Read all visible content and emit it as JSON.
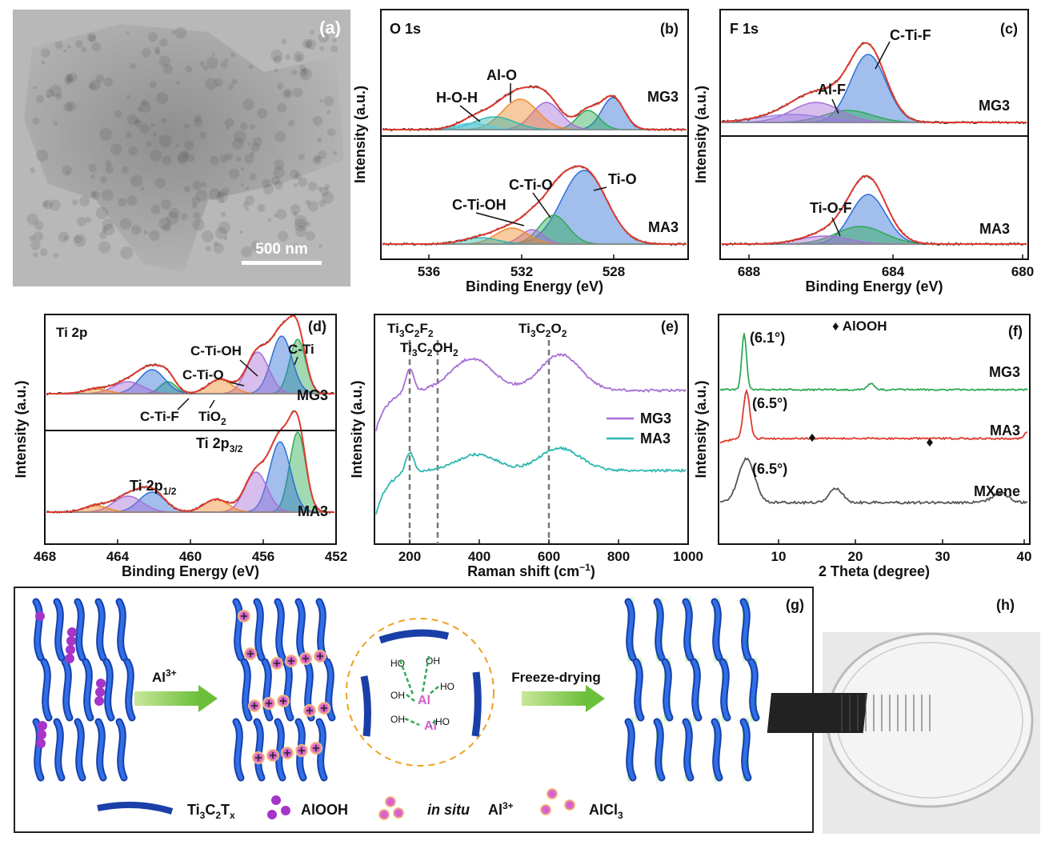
{
  "panels": {
    "a": {
      "label": "(a)",
      "scale_bar": "500 nm"
    },
    "b": {
      "label": "(b)",
      "title": "O 1s",
      "samples": [
        "MG3",
        "MA3"
      ],
      "peaks": [
        "H-O-H",
        "Al-O",
        "C-Ti-OH",
        "C-Ti-O",
        "Ti-O"
      ],
      "xticks": [
        536,
        532,
        528
      ],
      "x_label": "Binding Energy (eV)",
      "y_label": "Intensity (a.u.)"
    },
    "c": {
      "label": "(c)",
      "title": "F 1s",
      "samples": [
        "MG3",
        "MA3"
      ],
      "peaks": [
        "Al-F",
        "C-Ti-F",
        "Ti-O-F"
      ],
      "xticks": [
        688,
        684,
        680
      ],
      "x_label": "Binding Energy (eV)",
      "y_label": "Intensity (a.u.)"
    },
    "d": {
      "label": "(d)",
      "title": "Ti 2p",
      "samples": [
        "MG3",
        "MA3"
      ],
      "peaks": [
        "C-Ti-OH",
        "C-Ti-O",
        "C-Ti",
        "C-Ti-F"
      ],
      "tio2": [
        "TiO",
        "2"
      ],
      "orbitals": [
        [
          "Ti 2p",
          "3/2"
        ],
        [
          "Ti 2p",
          "1/2"
        ]
      ],
      "xticks": [
        468,
        464,
        460,
        456,
        452
      ],
      "x_label": "Binding Energy (eV)",
      "y_label": "Intensity (a.u.)"
    },
    "e": {
      "label": "(e)",
      "phases": [
        [
          "Ti",
          "3",
          "C",
          "2",
          "F",
          "2"
        ],
        [
          "Ti",
          "3",
          "C",
          "2",
          "OH",
          "2"
        ],
        [
          "Ti",
          "3",
          "C",
          "2",
          "O",
          "2"
        ]
      ],
      "legend": [
        "MG3",
        "MA3"
      ],
      "xticks": [
        200,
        400,
        600,
        800,
        1000
      ],
      "x_label": [
        "Raman shift (cm",
        "−1",
        ")"
      ],
      "y_label": "Intensity (a.u.)"
    },
    "f": {
      "label": "(f)",
      "marker_legend": "♦ AlOOH",
      "peak_labels": [
        "(6.1°)",
        "(6.5°)",
        "(6.5°)"
      ],
      "samples": [
        "MG3",
        "MA3",
        "MXene"
      ],
      "xticks": [
        10,
        20,
        30,
        40
      ],
      "x_label": "2 Theta (degree)",
      "y_label": "Intensity (a.u.)"
    },
    "g": {
      "label": "(g)",
      "step1": [
        "Al",
        "3+"
      ],
      "step2": "Freeze-drying",
      "bond_labels": [
        "HO",
        "OH",
        "Al",
        "Al",
        "OH",
        "OH",
        "HO",
        "HO"
      ],
      "legend": {
        "sheet": [
          "Ti",
          "3",
          "C",
          "2",
          "T",
          "x"
        ],
        "alooh": "AlOOH",
        "in_situ": "in situ",
        "ion": [
          " Al",
          "3+"
        ],
        "alcl3": [
          "AlCl",
          "3"
        ]
      }
    },
    "h": {
      "label": "(h)"
    }
  }
}
